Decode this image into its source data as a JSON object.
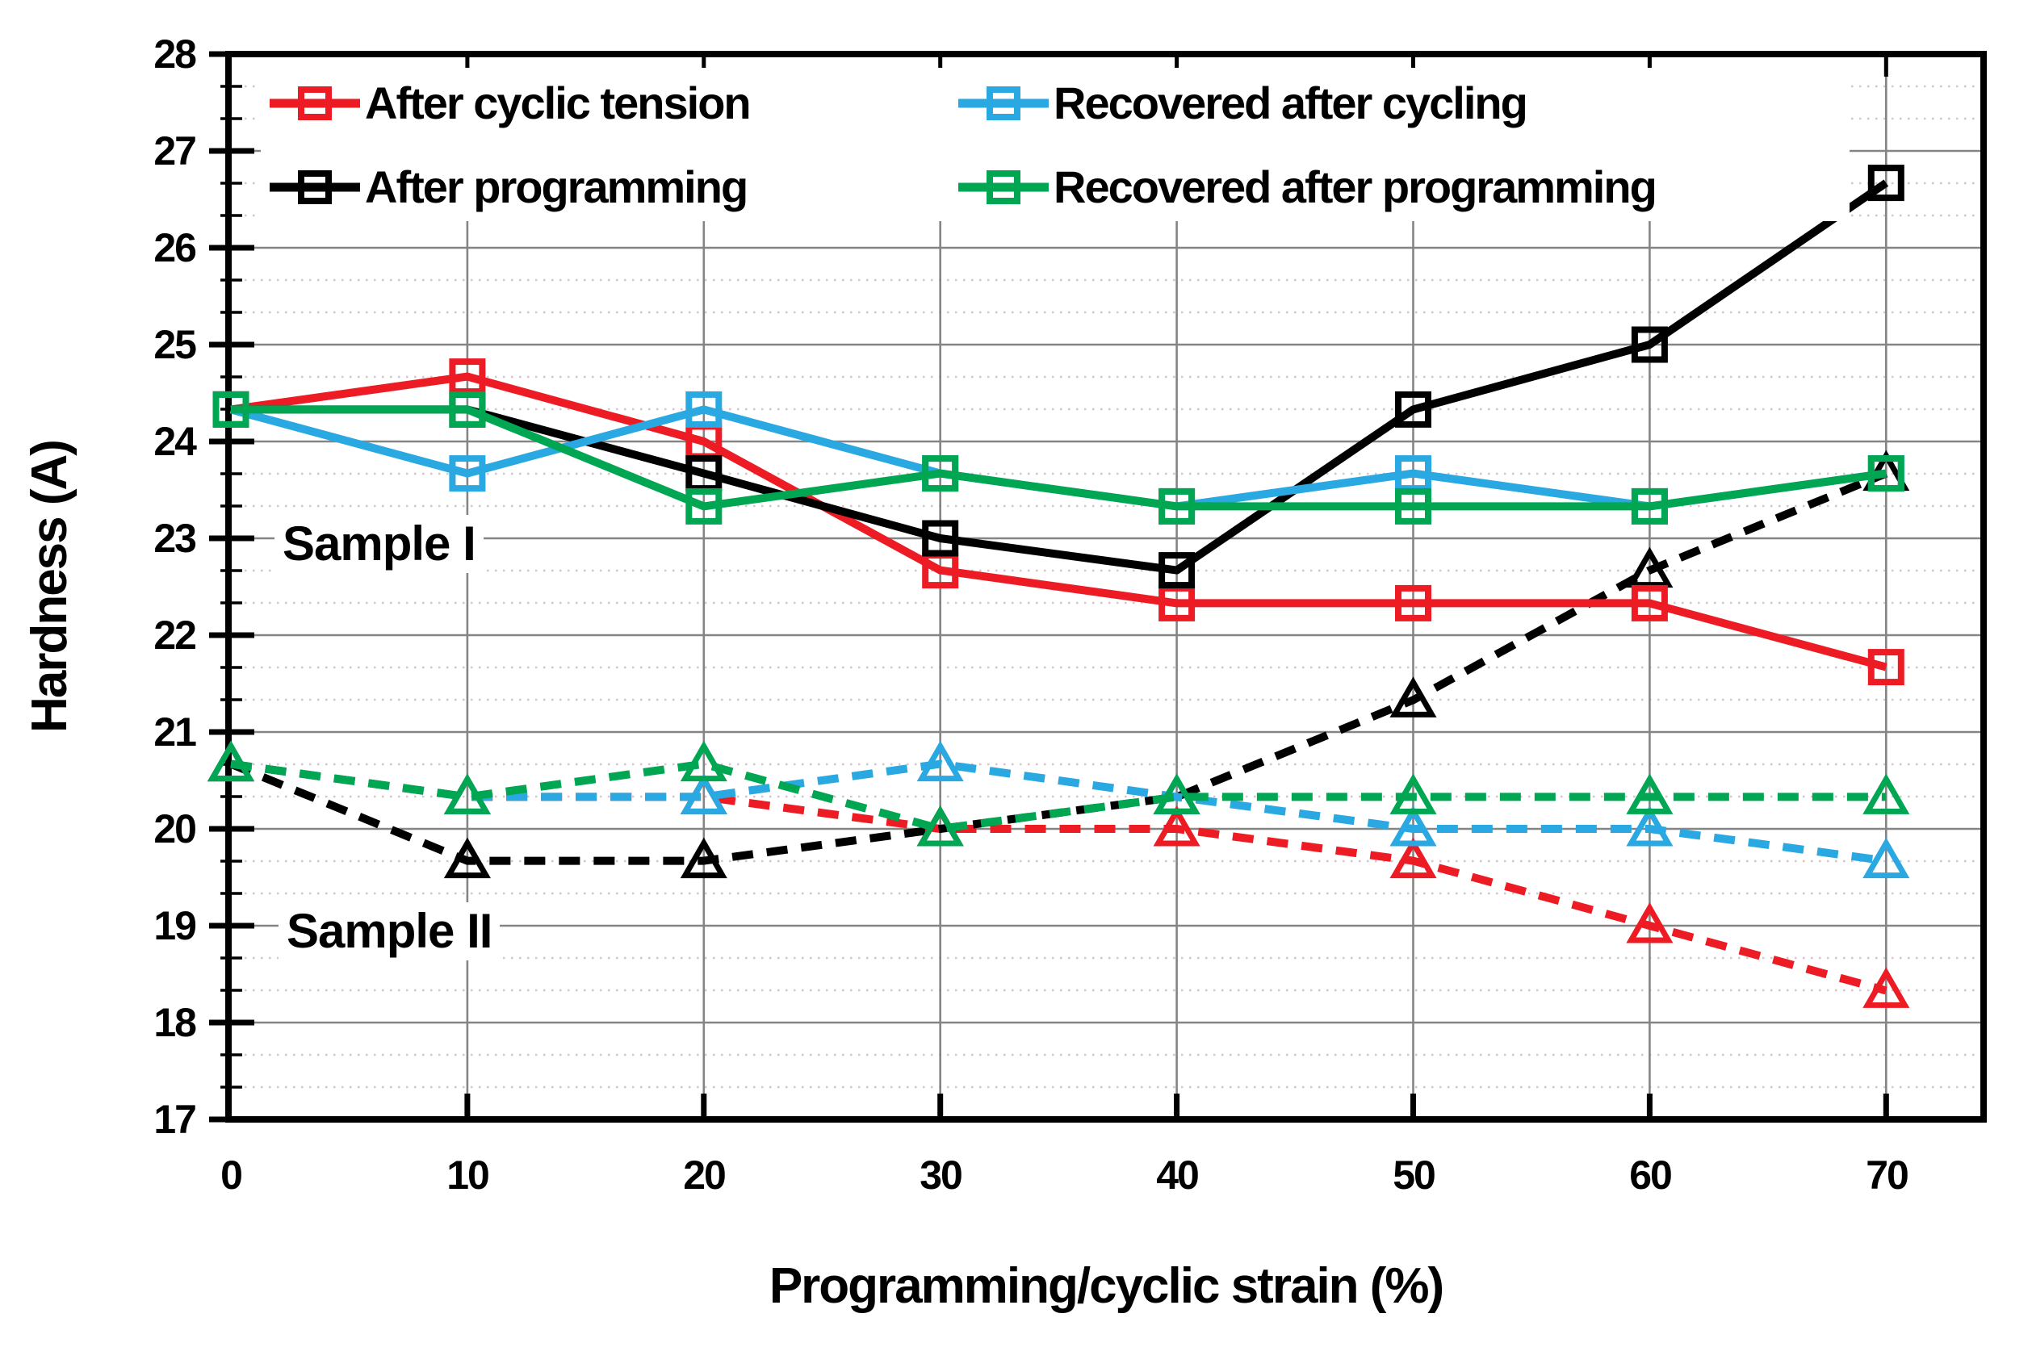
{
  "figure": {
    "background": "#ffffff"
  },
  "chart_data": {
    "type": "line",
    "title": "",
    "xlabel": "Programming/cyclic strain (%)",
    "ylabel": "Hardness (A)",
    "x": [
      0,
      10,
      20,
      30,
      40,
      50,
      60,
      70
    ],
    "xlim": [
      0,
      74.2
    ],
    "ylim": [
      17,
      28
    ],
    "x_tick_labels": [
      "0",
      "10",
      "20",
      "30",
      "40",
      "50",
      "60",
      "70"
    ],
    "y_tick_labels": [
      "17",
      "18",
      "19",
      "20",
      "21",
      "22",
      "23",
      "24",
      "25",
      "26",
      "27",
      "28"
    ],
    "grid": {
      "major": "on",
      "minor_y_step": 0.3333,
      "major_color": "#858585",
      "minor_color": "#d7c3ce"
    },
    "annotations": [
      {
        "text": "Sample I",
        "x_range": "0-11",
        "y": 23.0
      },
      {
        "text": "Sample II",
        "x_range": "2-12",
        "y": 19.0
      }
    ],
    "series": [
      {
        "name": "After cyclic tension",
        "sample": "II",
        "color": "#ED1C24",
        "line": "dashed",
        "marker": "triangle",
        "values": [
          20.67,
          20.33,
          20.33,
          20.0,
          20.0,
          19.67,
          19.0,
          18.33
        ]
      },
      {
        "name": "After programming",
        "sample": "II",
        "color": "#000000",
        "line": "dashed",
        "marker": "triangle",
        "values": [
          20.67,
          19.67,
          19.67,
          20.0,
          20.33,
          21.33,
          22.67,
          23.67
        ]
      },
      {
        "name": "Recovered after cycling",
        "sample": "II",
        "color": "#29A8E2",
        "line": "dashed",
        "marker": "triangle",
        "values": [
          20.67,
          20.33,
          20.33,
          20.67,
          20.33,
          20.0,
          20.0,
          19.67
        ]
      },
      {
        "name": "Recovered after programming",
        "sample": "II",
        "color": "#00A651",
        "line": "dashed",
        "marker": "triangle",
        "values": [
          20.67,
          20.33,
          20.67,
          20.0,
          20.33,
          20.33,
          20.33,
          20.33
        ]
      },
      {
        "name": "After cyclic tension",
        "sample": "I",
        "color": "#ED1C24",
        "line": "solid",
        "marker": "square",
        "values": [
          24.33,
          24.67,
          24.0,
          22.67,
          22.33,
          22.33,
          22.33,
          21.67
        ]
      },
      {
        "name": "After programming",
        "sample": "I",
        "color": "#000000",
        "line": "solid",
        "marker": "square",
        "values": [
          24.33,
          24.33,
          23.67,
          23.0,
          22.67,
          24.33,
          25.0,
          26.67
        ]
      },
      {
        "name": "Recovered after cycling",
        "sample": "I",
        "color": "#29A8E2",
        "line": "solid",
        "marker": "square",
        "values": [
          24.33,
          23.67,
          24.33,
          23.67,
          23.33,
          23.67,
          23.33,
          23.67
        ]
      },
      {
        "name": "Recovered after programming",
        "sample": "I",
        "color": "#00A651",
        "line": "solid",
        "marker": "square",
        "values": [
          24.33,
          24.33,
          23.33,
          23.67,
          23.33,
          23.33,
          23.33,
          23.67
        ]
      }
    ]
  },
  "legend": {
    "position": "top-left",
    "items": [
      {
        "label": "After cyclic tension",
        "color": "#ED1C24"
      },
      {
        "label": "After programming",
        "color": "#000000"
      },
      {
        "label": "Recovered after cycling",
        "color": "#29A8E2"
      },
      {
        "label": "Recovered after programming",
        "color": "#00A651"
      }
    ]
  }
}
